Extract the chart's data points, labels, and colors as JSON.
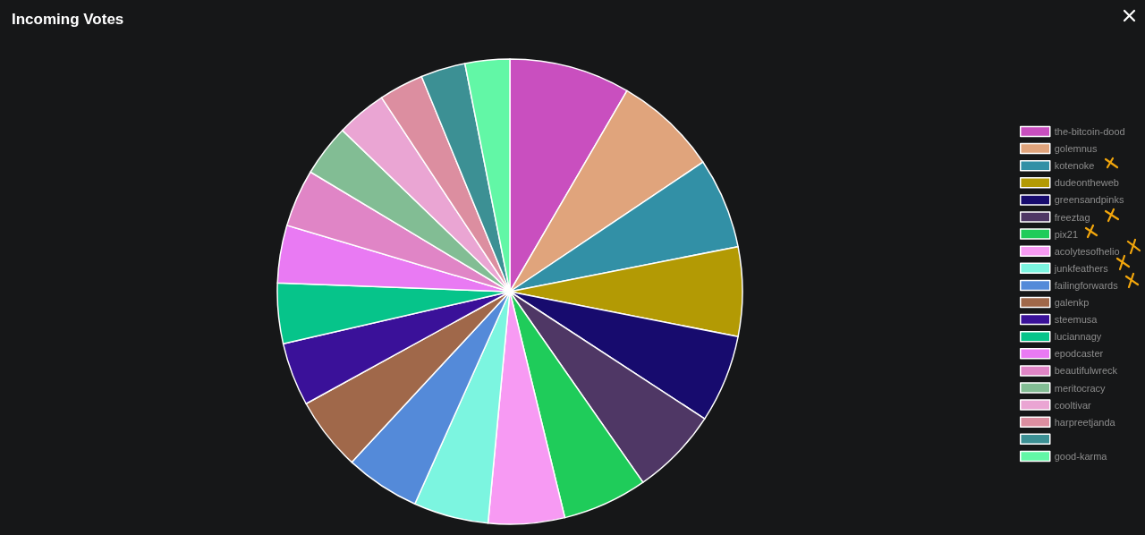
{
  "chart_data": {
    "type": "pie",
    "title": "Incoming Votes",
    "categories": [
      "the-bitcoin-dood",
      "golemnus",
      "kotenoke",
      "dudeontheweb",
      "greensandpinks",
      "freeztag",
      "pix21",
      "acolytesofhelio",
      "junkfeathers",
      "failingforwards",
      "galenkp",
      "steemusa",
      "luciannagy",
      "epodcaster",
      "beautifulwreck",
      "meritocracy",
      "cooltivar",
      "harpreetjanda",
      null,
      "good-karma"
    ],
    "values": [
      8.4,
      7.2,
      6.3,
      6.2,
      6.1,
      6.1,
      5.9,
      5.3,
      5.2,
      5.2,
      5.1,
      4.4,
      4.2,
      4.0,
      4.0,
      3.6,
      3.5,
      3.1,
      3.1,
      3.1
    ],
    "colors": [
      "#c94fbf",
      "#e0a47c",
      "#3290a6",
      "#b39a04",
      "#170b6e",
      "#4f3765",
      "#1fcc5a",
      "#f79af3",
      "#7cf5e0",
      "#548ad9",
      "#a0684a",
      "#3a1199",
      "#06c48a",
      "#e97af3",
      "#e085c6",
      "#82bd94",
      "#eaa5d3",
      "#dc8ea0",
      "#3c9094",
      "#62f7a6"
    ],
    "legend": "right"
  }
}
